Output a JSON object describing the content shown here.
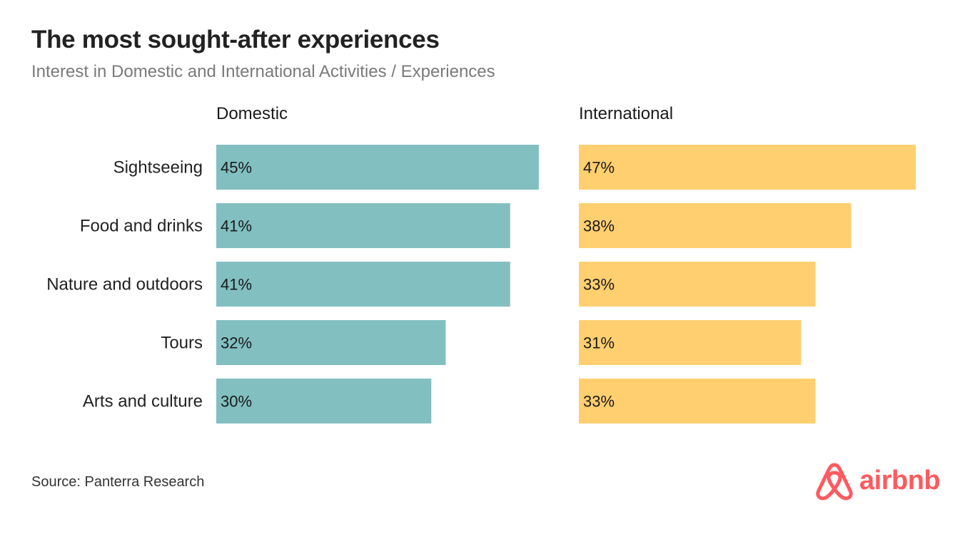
{
  "header": {
    "title": "The most sought-after experiences",
    "subtitle": "Interest in Domestic and International Activities / Experiences"
  },
  "footer": {
    "source": "Source: Panterra Research",
    "logo_text": "airbnb",
    "logo_icon": "airbnb-belo-icon"
  },
  "colors": {
    "domestic": "#82BFC1",
    "international": "#FFCF70",
    "brand": "#FF5A5F"
  },
  "chart_data": {
    "type": "bar",
    "orientation": "horizontal",
    "title": "The most sought-after experiences",
    "subtitle": "Interest in Domestic and International Activities / Experiences",
    "categories": [
      "Sightseeing",
      "Food and drinks",
      "Nature and outdoors",
      "Tours",
      "Arts and culture"
    ],
    "series": [
      {
        "name": "Domestic",
        "values": [
          45,
          41,
          41,
          32,
          30
        ],
        "labels": [
          "45%",
          "41%",
          "41%",
          "32%",
          "30%"
        ],
        "color": "#82BFC1"
      },
      {
        "name": "International",
        "values": [
          47,
          38,
          33,
          31,
          33
        ],
        "labels": [
          "47%",
          "38%",
          "33%",
          "31%",
          "33%"
        ],
        "color": "#FFCF70"
      }
    ],
    "xlim": [
      0,
      47
    ],
    "unit": "%",
    "grid": false
  }
}
